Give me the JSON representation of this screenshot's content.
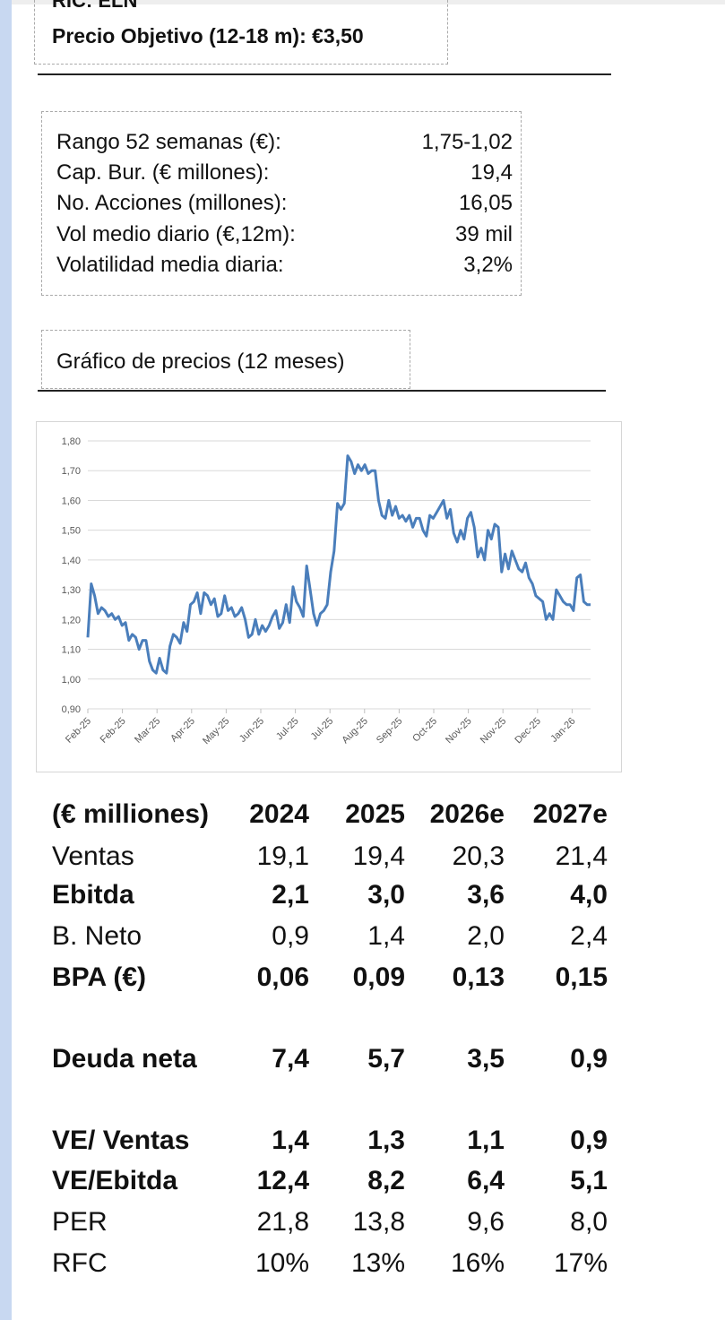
{
  "header": {
    "ticker": "RIC: ELN",
    "target_price": "Precio Objetivo (12-18 m): €3,50"
  },
  "stats": [
    {
      "label": "Rango 52 semanas (€):",
      "value": "1,75-1,02"
    },
    {
      "label": "Cap. Bur. (€ millones):",
      "value": "19,4"
    },
    {
      "label": "No. Acciones (millones):",
      "value": "16,05"
    },
    {
      "label": "Vol medio diario (€,12m):",
      "value": "39 mil"
    },
    {
      "label": "Volatilidad media diaria:",
      "value": "3,2%"
    }
  ],
  "chart_title": "Gráfico de precios (12 meses)",
  "chart_data": {
    "type": "line",
    "color": "#4a7ebb",
    "grid": true,
    "ylim": [
      0.9,
      1.8
    ],
    "yticks": [
      "1,80",
      "1,70",
      "1,60",
      "1,50",
      "1,40",
      "1,30",
      "1,20",
      "1,10",
      "1,00",
      "0,90"
    ],
    "xticks": [
      "Feb-25",
      "Feb-25",
      "Mar-25",
      "Apr-25",
      "May-25",
      "Jun-25",
      "Jul-25",
      "Jul-25",
      "Aug-25",
      "Sep-25",
      "Oct-25",
      "Nov-25",
      "Nov-25",
      "Dec-25",
      "Jan-26"
    ],
    "values": [
      1.14,
      1.32,
      1.28,
      1.22,
      1.24,
      1.23,
      1.21,
      1.22,
      1.2,
      1.21,
      1.18,
      1.19,
      1.13,
      1.15,
      1.14,
      1.1,
      1.13,
      1.13,
      1.06,
      1.03,
      1.02,
      1.07,
      1.03,
      1.02,
      1.11,
      1.15,
      1.14,
      1.12,
      1.19,
      1.16,
      1.25,
      1.26,
      1.29,
      1.22,
      1.29,
      1.28,
      1.25,
      1.27,
      1.21,
      1.22,
      1.28,
      1.23,
      1.24,
      1.21,
      1.22,
      1.24,
      1.2,
      1.14,
      1.15,
      1.2,
      1.15,
      1.18,
      1.16,
      1.18,
      1.21,
      1.23,
      1.17,
      1.19,
      1.25,
      1.19,
      1.31,
      1.26,
      1.24,
      1.21,
      1.38,
      1.3,
      1.22,
      1.18,
      1.22,
      1.23,
      1.25,
      1.36,
      1.43,
      1.59,
      1.57,
      1.59,
      1.75,
      1.73,
      1.69,
      1.72,
      1.7,
      1.72,
      1.69,
      1.7,
      1.7,
      1.6,
      1.55,
      1.54,
      1.6,
      1.55,
      1.58,
      1.54,
      1.55,
      1.53,
      1.55,
      1.51,
      1.54,
      1.54,
      1.5,
      1.48,
      1.55,
      1.54,
      1.56,
      1.58,
      1.6,
      1.54,
      1.57,
      1.49,
      1.46,
      1.5,
      1.47,
      1.54,
      1.56,
      1.51,
      1.41,
      1.44,
      1.4,
      1.5,
      1.47,
      1.52,
      1.51,
      1.36,
      1.42,
      1.37,
      1.43,
      1.4,
      1.37,
      1.36,
      1.39,
      1.34,
      1.32,
      1.28,
      1.27,
      1.26,
      1.2,
      1.22,
      1.2,
      1.3,
      1.28,
      1.26,
      1.25,
      1.25,
      1.23,
      1.34,
      1.35,
      1.26,
      1.25,
      1.25
    ]
  },
  "table": {
    "header": [
      "(€ milliones)",
      "2024",
      "2025",
      "2026e",
      "2027e"
    ],
    "rows": [
      {
        "label": "Ventas",
        "bold": false,
        "values": [
          "19,1",
          "19,4",
          "20,3",
          "21,4"
        ]
      },
      {
        "label": "Ebitda",
        "bold": true,
        "values": [
          "2,1",
          "3,0",
          "3,6",
          "4,0"
        ]
      },
      {
        "label": "B. Neto",
        "bold": false,
        "values": [
          "0,9",
          "1,4",
          "2,0",
          "2,4"
        ]
      },
      {
        "label": "BPA (€)",
        "bold": true,
        "values": [
          "0,06",
          "0,09",
          "0,13",
          "0,15"
        ]
      },
      {
        "label": "Deuda neta",
        "bold": true,
        "values": [
          "7,4",
          "5,7",
          "3,5",
          "0,9"
        ]
      },
      {
        "label": "VE/ Ventas",
        "bold": true,
        "values": [
          "1,4",
          "1,3",
          "1,1",
          "0,9"
        ]
      },
      {
        "label": "VE/Ebitda",
        "bold": true,
        "values": [
          "12,4",
          "8,2",
          "6,4",
          "5,1"
        ]
      },
      {
        "label": "PER",
        "bold": false,
        "values": [
          "21,8",
          "13,8",
          "9,6",
          "8,0"
        ]
      },
      {
        "label": "RFC",
        "bold": false,
        "values": [
          "10%",
          "13%",
          "16%",
          "17%"
        ]
      }
    ]
  }
}
